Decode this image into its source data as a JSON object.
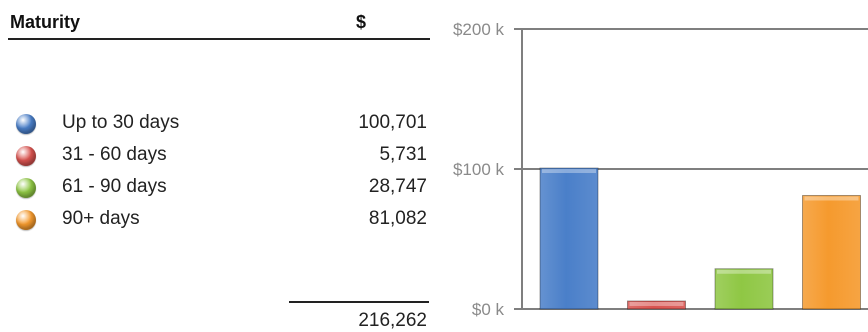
{
  "table": {
    "header_maturity": "Maturity",
    "header_amount": "$",
    "rows": [
      {
        "label": "Up to 30 days",
        "value": "100,701",
        "color": "#4a7fc9"
      },
      {
        "label": "31 - 60 days",
        "value": "5,731",
        "color": "#d9534f"
      },
      {
        "label": "61 - 90 days",
        "value": "28,747",
        "color": "#8fc744"
      },
      {
        "label": "90+ days",
        "value": "81,082",
        "color": "#f59a2e"
      }
    ],
    "total": "216,262"
  },
  "chart_data": {
    "type": "bar",
    "categories": [
      "Up to 30 days",
      "31 - 60 days",
      "61 - 90 days",
      "90+ days"
    ],
    "values": [
      100701,
      5731,
      28747,
      81082
    ],
    "colors": [
      "#4a7fc9",
      "#d9534f",
      "#8fc744",
      "#f59a2e"
    ],
    "ylim": [
      0,
      200000
    ],
    "yticks": [
      {
        "value": 0,
        "label": "$0 k"
      },
      {
        "value": 100000,
        "label": "$100 k"
      },
      {
        "value": 200000,
        "label": "$200 k"
      }
    ],
    "grid": true,
    "legend": "none"
  }
}
